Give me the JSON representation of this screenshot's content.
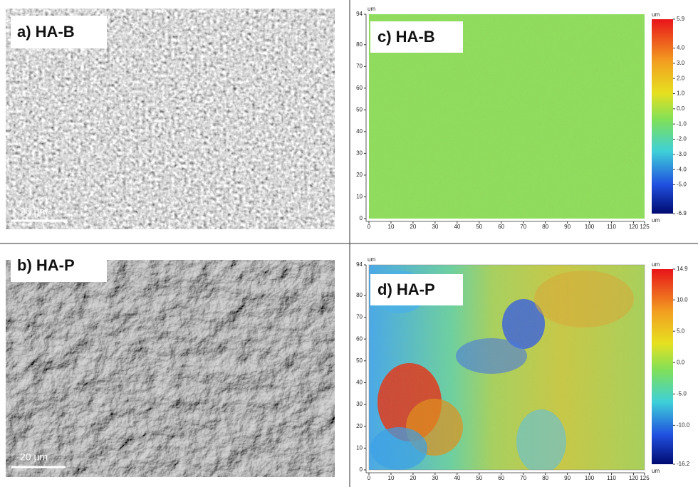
{
  "panels": [
    {
      "label": "a) HA-B",
      "scale_bar": "20 µm"
    },
    {
      "label": "b) HA-P",
      "scale_bar": "20 µm"
    }
  ],
  "maps": [
    {
      "label": "c) HA-B",
      "y_unit": "um",
      "x_unit": "um",
      "xticks": [
        0,
        10,
        20,
        30,
        40,
        50,
        60,
        70,
        80,
        90,
        100,
        110,
        120,
        125
      ],
      "yticks": [
        0,
        10,
        20,
        30,
        40,
        50,
        60,
        70,
        80,
        94
      ],
      "colorbar": {
        "unit": "um",
        "ticks": [
          5.9,
          {
            "value": 4,
            "label": "4.0"
          },
          {
            "value": 3,
            "label": "3.0"
          },
          {
            "value": 2,
            "label": "2.0"
          },
          {
            "value": 1,
            "label": "1.0"
          },
          {
            "value": 0,
            "label": "0.0"
          },
          {
            "value": -1,
            "label": "-1.0"
          },
          {
            "value": -2,
            "label": "-2.0"
          },
          {
            "value": -3,
            "label": "-3.0"
          },
          {
            "value": -4,
            "label": "-4.0"
          },
          {
            "value": -5,
            "label": "-5.0"
          },
          -6.9
        ]
      }
    },
    {
      "label": "d) HA-P",
      "y_unit": "um",
      "x_unit": "um",
      "xticks": [
        0,
        10,
        20,
        30,
        40,
        50,
        60,
        70,
        80,
        90,
        100,
        110,
        120,
        125
      ],
      "yticks": [
        0,
        10,
        20,
        30,
        40,
        50,
        60,
        70,
        80,
        94
      ],
      "colorbar": {
        "unit": "um",
        "ticks": [
          14.9,
          {
            "value": 10,
            "label": "10.0"
          },
          {
            "value": 5,
            "label": "5.0"
          },
          {
            "value": 0,
            "label": "0.0"
          },
          {
            "value": -5,
            "label": "-5.0"
          },
          {
            "value": -10,
            "label": "-10.0"
          },
          -16.2
        ]
      }
    }
  ]
}
